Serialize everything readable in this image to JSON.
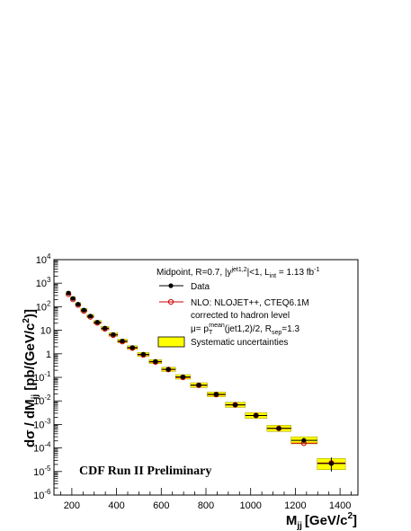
{
  "chart_data": {
    "type": "scatter",
    "xlabel": "M",
    "xlabel_sub": "jj",
    "xlabel_unit": "[GeV/c",
    "xlabel_unit_sup": "2",
    "xlabel_unit_end": "]",
    "ylabel_a": "dσ / dM",
    "ylabel_sub": "jj",
    "ylabel_b": " [pb/(GeV/c",
    "ylabel_sup": "2",
    "ylabel_c": ")]",
    "xlim": [
      120,
      1480
    ],
    "ylim_log10": [
      -6,
      4
    ],
    "log_y": true,
    "x_ticks": [
      200,
      400,
      600,
      800,
      1000,
      1200,
      1400
    ],
    "y_ticks": [
      {
        "exp": -6,
        "label": "10",
        "sup": "-6"
      },
      {
        "exp": -5,
        "label": "10",
        "sup": "-5"
      },
      {
        "exp": -4,
        "label": "10",
        "sup": "-4"
      },
      {
        "exp": -3,
        "label": "10",
        "sup": "-3"
      },
      {
        "exp": -2,
        "label": "10",
        "sup": "-2"
      },
      {
        "exp": -1,
        "label": "10",
        "sup": "-1"
      },
      {
        "exp": 0,
        "label": "1",
        "sup": ""
      },
      {
        "exp": 1,
        "label": "10",
        "sup": ""
      },
      {
        "exp": 2,
        "label": "10",
        "sup": "2"
      },
      {
        "exp": 3,
        "label": "10",
        "sup": "3"
      },
      {
        "exp": 4,
        "label": "10",
        "sup": "4"
      }
    ],
    "annotation": "CDF Run II Preliminary",
    "legend": {
      "header_a": "Midpoint, R=0.7, |y",
      "header_sup1": "jet1,2",
      "header_b": "|<1, L",
      "header_sub": "int",
      "header_c": " = 1.13 fb",
      "header_sup2": "-1",
      "data_label": "Data",
      "nlo_label": "NLO: NLOJET++, CTEQ6.1M",
      "nlo_line2": "corrected to hadron level",
      "mu_a": "μ= p",
      "mu_sub": "T",
      "mu_sup": "mean",
      "mu_b": "(jet1,2)/2, R",
      "mu_sub2": "sep",
      "mu_c": "=1.3",
      "syst_label": "Systematic uncertainties"
    },
    "colors": {
      "data": "#000000",
      "nlo": "#cc0000",
      "band": "#ffff00",
      "band_edge": "#999900"
    },
    "series": [
      {
        "name": "Data",
        "points": [
          {
            "x": 185,
            "y": 380,
            "xlo": 176,
            "xhi": 194
          },
          {
            "x": 205,
            "y": 225,
            "xlo": 194,
            "xhi": 216
          },
          {
            "x": 228,
            "y": 128,
            "xlo": 216,
            "xhi": 240
          },
          {
            "x": 254,
            "y": 72,
            "xlo": 240,
            "xhi": 268
          },
          {
            "x": 283,
            "y": 40,
            "xlo": 268,
            "xhi": 298
          },
          {
            "x": 314,
            "y": 22,
            "xlo": 298,
            "xhi": 331
          },
          {
            "x": 348,
            "y": 12.3,
            "xlo": 331,
            "xhi": 366
          },
          {
            "x": 385,
            "y": 6.6,
            "xlo": 366,
            "xhi": 405
          },
          {
            "x": 426,
            "y": 3.5,
            "xlo": 405,
            "xhi": 448
          },
          {
            "x": 471,
            "y": 1.85,
            "xlo": 448,
            "xhi": 494
          },
          {
            "x": 520,
            "y": 0.95,
            "xlo": 494,
            "xhi": 546
          },
          {
            "x": 574,
            "y": 0.47,
            "xlo": 546,
            "xhi": 602
          },
          {
            "x": 632,
            "y": 0.22,
            "xlo": 602,
            "xhi": 664
          },
          {
            "x": 697,
            "y": 0.105,
            "xlo": 664,
            "xhi": 731
          },
          {
            "x": 768,
            "y": 0.047,
            "xlo": 731,
            "xhi": 806
          },
          {
            "x": 846,
            "y": 0.019,
            "xlo": 806,
            "xhi": 887
          },
          {
            "x": 931,
            "y": 0.0068,
            "xlo": 887,
            "xhi": 976
          },
          {
            "x": 1024,
            "y": 0.0024,
            "xlo": 976,
            "xhi": 1073
          },
          {
            "x": 1126,
            "y": 0.00068,
            "xlo": 1073,
            "xhi": 1181
          },
          {
            "x": 1238,
            "y": 0.00021,
            "xlo": 1181,
            "xhi": 1298
          },
          {
            "x": 1361,
            "y": 2.2e-05,
            "xlo": 1298,
            "xhi": 1424
          }
        ]
      },
      {
        "name": "NLO: NLOJET++, CTEQ6.1M",
        "points": [
          {
            "x": 185,
            "y": 340
          },
          {
            "x": 205,
            "y": 205
          },
          {
            "x": 228,
            "y": 118
          },
          {
            "x": 254,
            "y": 66
          },
          {
            "x": 283,
            "y": 37
          },
          {
            "x": 314,
            "y": 20.5
          },
          {
            "x": 348,
            "y": 11.5
          },
          {
            "x": 385,
            "y": 6.2
          },
          {
            "x": 426,
            "y": 3.3
          },
          {
            "x": 471,
            "y": 1.75
          },
          {
            "x": 520,
            "y": 0.9
          },
          {
            "x": 574,
            "y": 0.45
          },
          {
            "x": 632,
            "y": 0.215
          },
          {
            "x": 697,
            "y": 0.1
          },
          {
            "x": 768,
            "y": 0.046
          },
          {
            "x": 846,
            "y": 0.0185
          },
          {
            "x": 931,
            "y": 0.0068
          },
          {
            "x": 1024,
            "y": 0.0024
          },
          {
            "x": 1126,
            "y": 0.00068
          },
          {
            "x": 1238,
            "y": 0.00016
          },
          {
            "x": 1361,
            "y": 2.3e-05
          }
        ]
      },
      {
        "name": "Systematic uncertainties",
        "bands": [
          {
            "x": 185,
            "lo": 320,
            "hi": 450
          },
          {
            "x": 205,
            "lo": 190,
            "hi": 265
          },
          {
            "x": 228,
            "lo": 108,
            "hi": 150
          },
          {
            "x": 254,
            "lo": 61,
            "hi": 85
          },
          {
            "x": 283,
            "lo": 34,
            "hi": 47
          },
          {
            "x": 314,
            "lo": 18.6,
            "hi": 26
          },
          {
            "x": 348,
            "lo": 10.3,
            "hi": 14.5
          },
          {
            "x": 385,
            "lo": 5.5,
            "hi": 7.8
          },
          {
            "x": 426,
            "lo": 2.9,
            "hi": 4.2
          },
          {
            "x": 471,
            "lo": 1.52,
            "hi": 2.2
          },
          {
            "x": 520,
            "lo": 0.78,
            "hi": 1.14
          },
          {
            "x": 574,
            "lo": 0.38,
            "hi": 0.57
          },
          {
            "x": 632,
            "lo": 0.178,
            "hi": 0.27
          },
          {
            "x": 697,
            "lo": 0.084,
            "hi": 0.13
          },
          {
            "x": 768,
            "lo": 0.037,
            "hi": 0.059
          },
          {
            "x": 846,
            "lo": 0.015,
            "hi": 0.024
          },
          {
            "x": 931,
            "lo": 0.0053,
            "hi": 0.0088
          },
          {
            "x": 1024,
            "lo": 0.0018,
            "hi": 0.0032
          },
          {
            "x": 1126,
            "lo": 0.0005,
            "hi": 0.00092
          },
          {
            "x": 1238,
            "lo": 0.00015,
            "hi": 0.0003
          },
          {
            "x": 1361,
            "lo": 1.2e-05,
            "hi": 3.6e-05
          }
        ]
      }
    ]
  }
}
